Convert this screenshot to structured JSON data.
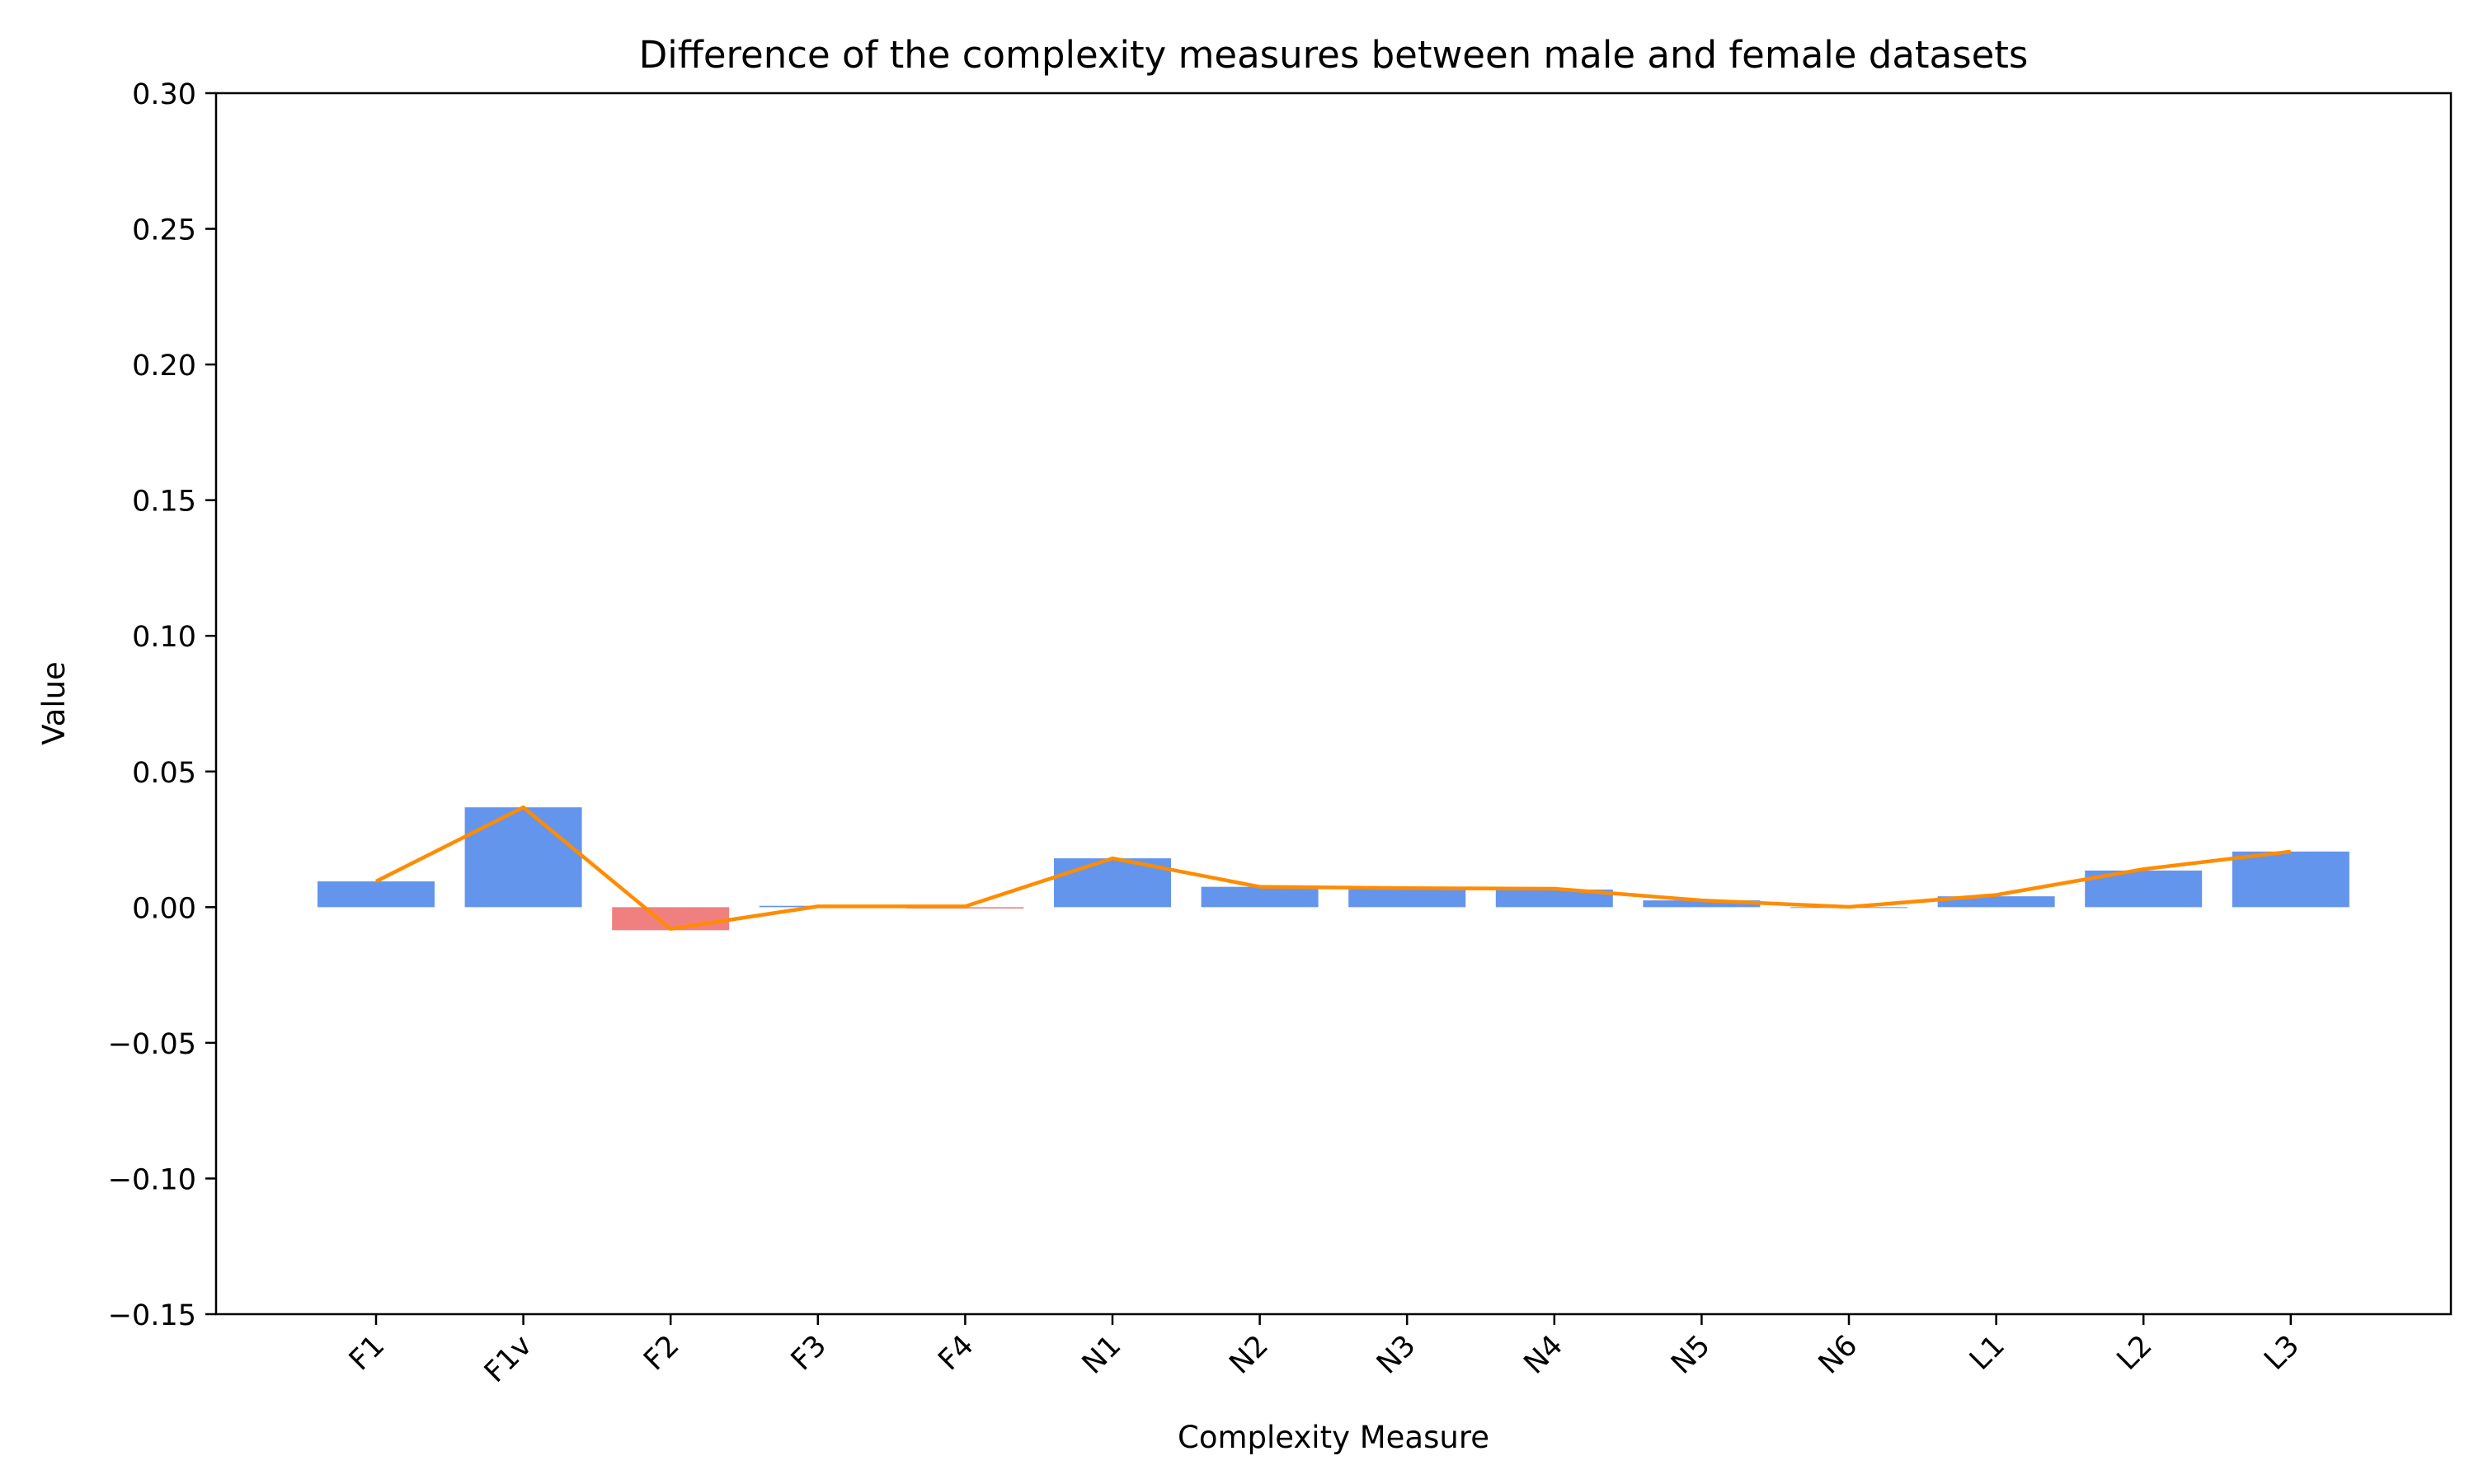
{
  "chart_data": {
    "type": "bar",
    "title": "Difference of the complexity measures between male and female datasets",
    "xlabel": "Complexity Measure",
    "ylabel": "Value",
    "ylim": [
      -0.15,
      0.3
    ],
    "yticks": [
      -0.15,
      -0.1,
      -0.05,
      0.0,
      0.05,
      0.1,
      0.15,
      0.2,
      0.25,
      0.3
    ],
    "ytick_labels": [
      "−0.15",
      "−0.10",
      "−0.05",
      "0.00",
      "0.05",
      "0.10",
      "0.15",
      "0.20",
      "0.25",
      "0.30"
    ],
    "categories": [
      "F1",
      "F1v",
      "F2",
      "F3",
      "F4",
      "N1",
      "N2",
      "N3",
      "N4",
      "N5",
      "N6",
      "L1",
      "L2",
      "L3"
    ],
    "values": [
      0.0095,
      0.0368,
      -0.0085,
      0.0005,
      -0.0005,
      0.018,
      0.0075,
      0.007,
      0.0065,
      0.0025,
      0.0,
      0.004,
      0.0135,
      0.0205
    ],
    "line_values": [
      0.0095,
      0.0368,
      -0.008,
      0.0003,
      0.0003,
      0.018,
      0.0075,
      0.007,
      0.0068,
      0.0025,
      0.0001,
      0.0045,
      0.014,
      0.0205
    ],
    "grid": false,
    "colors": {
      "positive_bar": "#6495ed",
      "negative_bar": "#f08080",
      "line": "#ff8c00",
      "axis": "#000000"
    }
  }
}
